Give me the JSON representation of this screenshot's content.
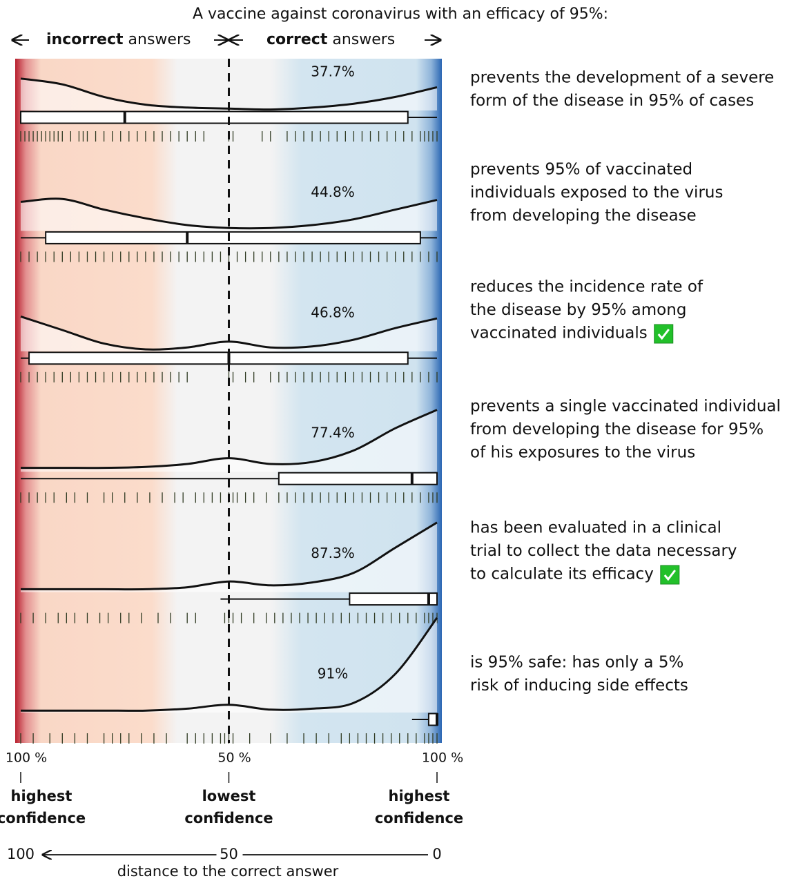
{
  "chart_data": {
    "type": "ridgeline",
    "title": "A vaccine against coronavirus with an efficacy of 95%:",
    "header": {
      "left_bold": "incorrect",
      "left_rest": "answers",
      "right_bold": "correct",
      "right_rest": "answers"
    },
    "xlim": [
      100,
      0
    ],
    "xticks": [
      {
        "value": 100,
        "label": "100 %"
      },
      {
        "value": 50,
        "label": "50 %"
      },
      {
        "value": 0,
        "label": "100 %"
      }
    ],
    "tick_captions": [
      [
        "highest",
        "confidence"
      ],
      [
        "lowest",
        "confidence"
      ],
      [
        "highest",
        "confidence"
      ]
    ],
    "distance_axis": {
      "label": "distance to the correct answer",
      "ticks": [
        100,
        50,
        0
      ]
    },
    "density_x": [
      100,
      90,
      80,
      70,
      60,
      50,
      40,
      30,
      20,
      10,
      0
    ],
    "density_ylim": [
      0,
      1
    ],
    "series": [
      {
        "statement": [
          "prevents the development of a severe",
          "form of the disease in 95% of cases"
        ],
        "value": 37.7,
        "value_label": "37.7%",
        "correct": false,
        "density": [
          0.33,
          0.27,
          0.14,
          0.06,
          0.03,
          0.02,
          0.01,
          0.03,
          0.07,
          0.14,
          0.24
        ],
        "box": {
          "min": 0,
          "q1": 7,
          "median": 75,
          "q3": 100,
          "max": 100
        },
        "rug": [
          100,
          99,
          98,
          97,
          96,
          95,
          94,
          93,
          92,
          91,
          90,
          88,
          86,
          85,
          84,
          82,
          80,
          78,
          76,
          74,
          72,
          70,
          68,
          66,
          64,
          62,
          60,
          58,
          56,
          50,
          49,
          42,
          40,
          36,
          34,
          32,
          30,
          28,
          26,
          24,
          22,
          20,
          18,
          16,
          14,
          12,
          10,
          8,
          6,
          4,
          3,
          2,
          1,
          0
        ]
      },
      {
        "statement": [
          "prevents 95% of vaccinated",
          "individuals exposed to the virus",
          "from developing the disease"
        ],
        "value": 44.8,
        "value_label": "44.8%",
        "correct": false,
        "density": [
          0.3,
          0.33,
          0.22,
          0.13,
          0.06,
          0.03,
          0.03,
          0.06,
          0.12,
          0.22,
          0.32
        ],
        "box": {
          "min": 0,
          "q1": 4,
          "median": 60,
          "q3": 94,
          "max": 100
        },
        "rug": [
          100,
          98,
          96,
          94,
          92,
          90,
          88,
          86,
          84,
          82,
          80,
          78,
          76,
          74,
          72,
          70,
          68,
          66,
          64,
          62,
          60,
          58,
          56,
          54,
          52,
          50,
          48,
          46,
          44,
          42,
          40,
          38,
          36,
          34,
          32,
          30,
          28,
          26,
          24,
          22,
          20,
          18,
          16,
          14,
          12,
          10,
          8,
          6,
          4,
          2,
          0
        ]
      },
      {
        "statement": [
          "reduces the incidence rate of",
          "the disease by 95% among",
          "vaccinated individuals"
        ],
        "value": 46.8,
        "value_label": "46.8%",
        "correct": true,
        "density": [
          0.36,
          0.22,
          0.08,
          0.02,
          0.04,
          0.1,
          0.04,
          0.05,
          0.12,
          0.24,
          0.34
        ],
        "box": {
          "min": 0,
          "q1": 7,
          "median": 50,
          "q3": 98,
          "max": 100
        },
        "rug": [
          100,
          98,
          96,
          94,
          92,
          90,
          88,
          86,
          84,
          82,
          80,
          78,
          76,
          74,
          72,
          70,
          68,
          66,
          64,
          62,
          60,
          50,
          49,
          46,
          44,
          40,
          38,
          36,
          34,
          32,
          30,
          28,
          26,
          24,
          22,
          20,
          18,
          16,
          14,
          12,
          10,
          8,
          6,
          4,
          2,
          0
        ]
      },
      {
        "statement": [
          "prevents a single vaccinated individual",
          "from developing the disease for 95%",
          "of his exposures to the virus"
        ],
        "value": 77.4,
        "value_label": "77.4%",
        "correct": false,
        "density": [
          0.04,
          0.04,
          0.04,
          0.05,
          0.08,
          0.14,
          0.08,
          0.1,
          0.22,
          0.45,
          0.64
        ],
        "box": {
          "min": 0,
          "q1": 0,
          "median": 6,
          "q3": 38,
          "max": 100
        },
        "rug": [
          100,
          98,
          96,
          94,
          92,
          89,
          87,
          84,
          80,
          78,
          75,
          72,
          69,
          66,
          63,
          61,
          58,
          56,
          54,
          52,
          50,
          49,
          48,
          46,
          44,
          41,
          38,
          36,
          34,
          32,
          30,
          28,
          26,
          24,
          22,
          20,
          18,
          16,
          14,
          12,
          10,
          8,
          6,
          4,
          2,
          1,
          0
        ]
      },
      {
        "statement": [
          "has been evaluated in a clinical",
          "trial to collect the data necessary",
          "to calculate its efficacy"
        ],
        "value": 87.3,
        "value_label": "87.3%",
        "correct": true,
        "density": [
          0.03,
          0.03,
          0.03,
          0.03,
          0.05,
          0.11,
          0.07,
          0.1,
          0.2,
          0.46,
          0.72
        ],
        "box": {
          "min": 0,
          "q1": 0,
          "median": 2,
          "q3": 21,
          "max": 52
        },
        "rug": [
          100,
          97,
          94,
          91,
          89,
          87,
          84,
          81,
          79,
          76,
          74,
          71,
          67,
          64,
          60,
          58,
          51,
          50,
          49,
          47,
          44,
          41,
          39,
          37,
          35,
          33,
          31,
          29,
          27,
          25,
          23,
          21,
          19,
          17,
          15,
          13,
          11,
          9,
          7,
          5,
          3,
          2,
          1,
          0
        ]
      },
      {
        "statement": [
          "is 95% safe: has only a 5%",
          "risk of inducing side effects"
        ],
        "value": 91,
        "value_label": "91%",
        "correct": false,
        "density": [
          0.02,
          0.02,
          0.02,
          0.02,
          0.04,
          0.08,
          0.03,
          0.04,
          0.1,
          0.4,
          0.98
        ],
        "box": {
          "min": 0,
          "q1": 0,
          "median": 0,
          "q3": 2,
          "max": 6
        },
        "rug": [
          100,
          97,
          93,
          90,
          87,
          84,
          80,
          78,
          76,
          74,
          71,
          68,
          65,
          60,
          58,
          56,
          54,
          52,
          51,
          50,
          49,
          45,
          40,
          36,
          32,
          29,
          26,
          23,
          21,
          19,
          17,
          15,
          13,
          11,
          9,
          7,
          5,
          3,
          2,
          1,
          0
        ]
      }
    ]
  }
}
